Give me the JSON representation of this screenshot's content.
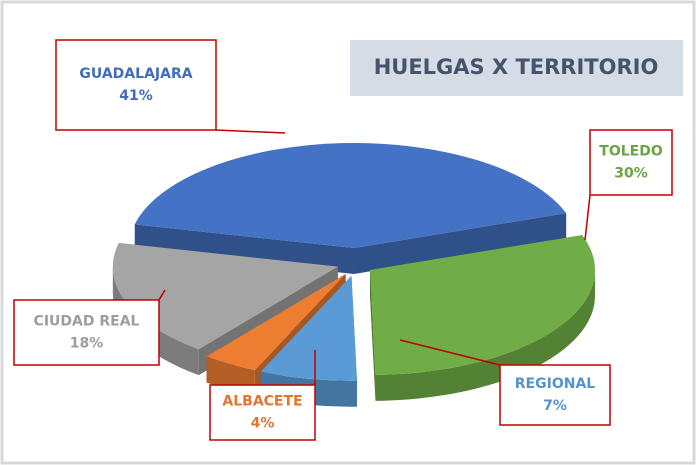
{
  "chart_data": {
    "type": "pie3d",
    "title": "HUELGAS X TERRITORIO",
    "categories": [
      "GUADALAJARA",
      "TOLEDO",
      "REGIONAL",
      "ALBACETE",
      "CIUDAD REAL"
    ],
    "values": [
      41,
      30,
      7,
      4,
      18
    ],
    "value_labels": [
      "41%",
      "30%",
      "7%",
      "4%",
      "18%"
    ],
    "colors": [
      "#4472c4",
      "#70ad47",
      "#5b9bd5",
      "#ed7d31",
      "#a5a5a5"
    ]
  }
}
